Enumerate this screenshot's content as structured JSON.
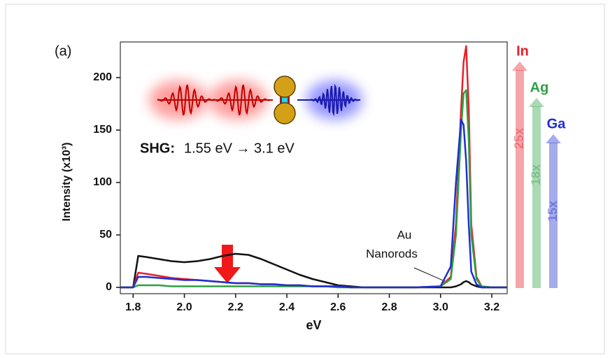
{
  "chart_data": {
    "type": "line",
    "panel_label": "(a)",
    "xlabel": "eV",
    "ylabel": "Intensity (x10³)",
    "annotation_label": "SHG:",
    "annotation_text": "1.55 eV → 3.1 eV",
    "callout": [
      "Au",
      "Nanorods"
    ],
    "xlim": [
      1.75,
      3.26
    ],
    "ylim": [
      -6,
      234
    ],
    "xticks": [
      1.8,
      {
        "value": 2,
        "label": "2.0"
      },
      2.2,
      2.4,
      2.6,
      2.8,
      {
        "value": 3,
        "label": "3.0"
      },
      3.2
    ],
    "yticks": [
      0,
      50,
      100,
      150,
      200
    ],
    "x": [
      1.75,
      1.8,
      1.82,
      1.85,
      1.9,
      1.95,
      2.0,
      2.05,
      2.1,
      2.15,
      2.2,
      2.25,
      2.3,
      2.35,
      2.4,
      2.45,
      2.5,
      2.55,
      2.6,
      2.65,
      2.7,
      2.8,
      2.9,
      3.0,
      3.04,
      3.06,
      3.08,
      3.09,
      3.1,
      3.11,
      3.12,
      3.14,
      3.16,
      3.2,
      3.26
    ],
    "series": [
      {
        "color": "#111111",
        "values": [
          0,
          0,
          30,
          29,
          27,
          25,
          24,
          25,
          27,
          30,
          32,
          31,
          27,
          22,
          17,
          12,
          8,
          5,
          2,
          1,
          0,
          0,
          0,
          0,
          0,
          1,
          3,
          5,
          6,
          5,
          3,
          1,
          0,
          0,
          0
        ]
      },
      {
        "name": "In",
        "color": "#e8202a",
        "enhancement": "25x",
        "values": [
          0,
          0,
          14,
          13,
          11,
          9,
          8,
          7,
          6,
          5,
          4,
          4,
          3,
          3,
          2,
          2,
          1,
          1,
          1,
          0,
          0,
          0,
          0,
          1,
          10,
          60,
          170,
          215,
          230,
          170,
          60,
          10,
          1,
          0,
          0
        ]
      },
      {
        "name": "Ag",
        "color": "#2ea043",
        "enhancement": "18x",
        "values": [
          0,
          0,
          2,
          2,
          2,
          1,
          1,
          1,
          1,
          1,
          1,
          1,
          1,
          1,
          1,
          1,
          1,
          1,
          0,
          0,
          0,
          0,
          0,
          1,
          8,
          50,
          150,
          185,
          188,
          140,
          50,
          8,
          1,
          0,
          0
        ]
      },
      {
        "name": "Ga",
        "color": "#1f2fd0",
        "enhancement": "15x",
        "values": [
          0,
          0,
          10,
          10,
          9,
          8,
          7,
          7,
          6,
          5,
          4,
          4,
          3,
          3,
          2,
          2,
          1,
          1,
          1,
          0,
          0,
          0,
          0,
          1,
          20,
          100,
          160,
          155,
          120,
          60,
          15,
          3,
          0,
          0,
          0
        ]
      }
    ]
  }
}
